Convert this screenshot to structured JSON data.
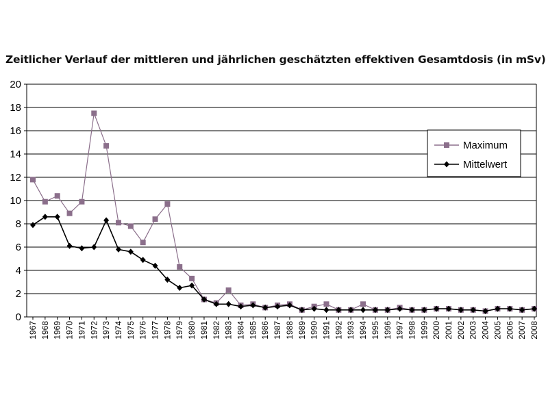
{
  "chart_data": {
    "type": "line",
    "title": "Zeitlicher Verlauf der mittleren und jährlichen geschätzten effektiven Gesamtdosis (in mSv)",
    "xlabel": "",
    "ylabel": "",
    "ylim": [
      0,
      20
    ],
    "yticks": [
      0,
      2,
      4,
      6,
      8,
      10,
      12,
      14,
      16,
      18,
      20
    ],
    "grid": "horizontal",
    "legend_position": "right",
    "categories": [
      "1967",
      "1968",
      "1969",
      "1970",
      "1971",
      "1972",
      "1973",
      "1974",
      "1975",
      "1976",
      "1977",
      "1978",
      "1979",
      "1980",
      "1981",
      "1982",
      "1983",
      "1984",
      "1985",
      "1986",
      "1987",
      "1988",
      "1989",
      "1990",
      "1991",
      "1992",
      "1993",
      "1994",
      "1995",
      "1996",
      "1997",
      "1998",
      "1999",
      "2000",
      "2001",
      "2002",
      "2003",
      "2004",
      "2005",
      "2006",
      "2007",
      "2008"
    ],
    "series": [
      {
        "name": "Maximum",
        "color": "#8b6f8b",
        "marker": "square",
        "values": [
          11.8,
          9.9,
          10.4,
          8.9,
          9.9,
          17.5,
          14.7,
          8.1,
          7.8,
          6.4,
          8.4,
          9.7,
          4.3,
          3.3,
          1.5,
          1.2,
          2.3,
          1.0,
          1.1,
          0.8,
          1.0,
          1.1,
          0.6,
          0.9,
          1.1,
          0.6,
          0.6,
          1.1,
          0.6,
          0.6,
          0.8,
          0.6,
          0.6,
          0.7,
          0.7,
          0.6,
          0.6,
          0.5,
          0.7,
          0.7,
          0.6,
          0.7
        ]
      },
      {
        "name": "Mittelwert",
        "color": "#000000",
        "marker": "diamond",
        "values": [
          7.9,
          8.6,
          8.6,
          6.1,
          5.9,
          6.0,
          8.3,
          5.8,
          5.6,
          4.9,
          4.4,
          3.2,
          2.5,
          2.7,
          1.5,
          1.1,
          1.1,
          0.9,
          1.0,
          0.8,
          0.9,
          1.0,
          0.6,
          0.7,
          0.6,
          0.6,
          0.6,
          0.6,
          0.6,
          0.6,
          0.7,
          0.6,
          0.6,
          0.7,
          0.7,
          0.6,
          0.6,
          0.5,
          0.7,
          0.7,
          0.6,
          0.7
        ]
      }
    ]
  }
}
